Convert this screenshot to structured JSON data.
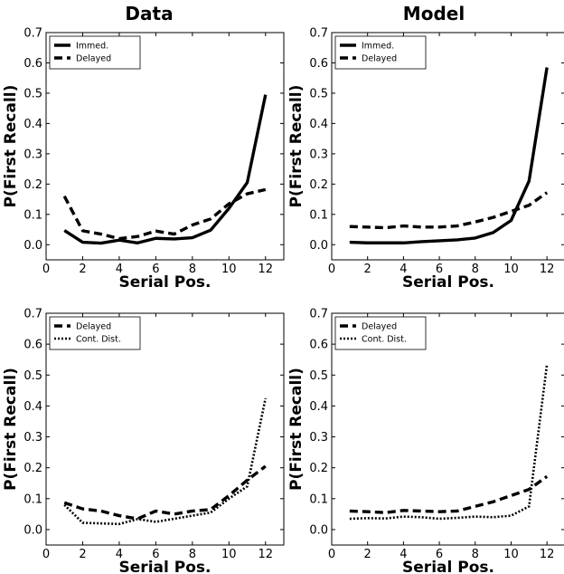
{
  "column_titles": [
    "Data",
    "Model"
  ],
  "chart_data": [
    {
      "type": "line",
      "panel": "top-left",
      "title": "Data",
      "xlabel": "Serial Pos.",
      "ylabel": "P(First Recall)",
      "xlim": [
        0,
        13
      ],
      "ylim": [
        -0.05,
        0.7
      ],
      "xticks": [
        0,
        2,
        4,
        6,
        8,
        10,
        12
      ],
      "yticks": [
        0.0,
        0.1,
        0.2,
        0.3,
        0.4,
        0.5,
        0.6,
        0.7
      ],
      "legend_position": "top-left",
      "x": [
        1,
        2,
        3,
        4,
        5,
        6,
        7,
        8,
        9,
        10,
        11,
        12
      ],
      "series": [
        {
          "name": "Immed.",
          "style": "solid",
          "values": [
            0.047,
            0.008,
            0.005,
            0.015,
            0.006,
            0.021,
            0.019,
            0.023,
            0.048,
            0.12,
            0.205,
            0.495
          ]
        },
        {
          "name": "Delayed",
          "style": "dashed",
          "values": [
            0.16,
            0.046,
            0.035,
            0.02,
            0.027,
            0.045,
            0.035,
            0.065,
            0.085,
            0.135,
            0.168,
            0.182
          ]
        }
      ]
    },
    {
      "type": "line",
      "panel": "top-right",
      "title": "Model",
      "xlabel": "Serial Pos.",
      "ylabel": "P(First Recall)",
      "xlim": [
        0,
        13
      ],
      "ylim": [
        -0.05,
        0.7
      ],
      "xticks": [
        0,
        2,
        4,
        6,
        8,
        10,
        12
      ],
      "yticks": [
        0.0,
        0.1,
        0.2,
        0.3,
        0.4,
        0.5,
        0.6,
        0.7
      ],
      "legend_position": "top-left",
      "x": [
        1,
        2,
        3,
        4,
        5,
        6,
        7,
        8,
        9,
        10,
        11,
        12
      ],
      "series": [
        {
          "name": "Immed.",
          "style": "solid",
          "values": [
            0.008,
            0.006,
            0.006,
            0.006,
            0.01,
            0.013,
            0.016,
            0.022,
            0.04,
            0.08,
            0.21,
            0.585
          ]
        },
        {
          "name": "Delayed",
          "style": "dashed",
          "values": [
            0.06,
            0.058,
            0.056,
            0.062,
            0.058,
            0.058,
            0.062,
            0.075,
            0.09,
            0.11,
            0.13,
            0.172
          ]
        }
      ]
    },
    {
      "type": "line",
      "panel": "bottom-left",
      "xlabel": "Serial Pos.",
      "ylabel": "P(First Recall)",
      "xlim": [
        0,
        13
      ],
      "ylim": [
        -0.05,
        0.7
      ],
      "xticks": [
        0,
        2,
        4,
        6,
        8,
        10,
        12
      ],
      "yticks": [
        0.0,
        0.1,
        0.2,
        0.3,
        0.4,
        0.5,
        0.6,
        0.7
      ],
      "legend_position": "top-left",
      "x": [
        1,
        2,
        3,
        4,
        5,
        6,
        7,
        8,
        9,
        10,
        11,
        12
      ],
      "series": [
        {
          "name": "Delayed",
          "style": "dashed",
          "values": [
            0.087,
            0.067,
            0.06,
            0.045,
            0.035,
            0.06,
            0.05,
            0.06,
            0.065,
            0.11,
            0.16,
            0.205
          ]
        },
        {
          "name": "Cont. Dist.",
          "style": "dotted",
          "values": [
            0.08,
            0.022,
            0.02,
            0.018,
            0.034,
            0.025,
            0.035,
            0.045,
            0.055,
            0.1,
            0.14,
            0.425
          ]
        }
      ]
    },
    {
      "type": "line",
      "panel": "bottom-right",
      "xlabel": "Serial Pos.",
      "ylabel": "P(First Recall)",
      "xlim": [
        0,
        13
      ],
      "ylim": [
        -0.05,
        0.7
      ],
      "xticks": [
        0,
        2,
        4,
        6,
        8,
        10,
        12
      ],
      "yticks": [
        0.0,
        0.1,
        0.2,
        0.3,
        0.4,
        0.5,
        0.6,
        0.7
      ],
      "legend_position": "top-left",
      "x": [
        1,
        2,
        3,
        4,
        5,
        6,
        7,
        8,
        9,
        10,
        11,
        12
      ],
      "series": [
        {
          "name": "Delayed",
          "style": "dashed",
          "values": [
            0.06,
            0.058,
            0.055,
            0.062,
            0.06,
            0.058,
            0.06,
            0.075,
            0.09,
            0.11,
            0.13,
            0.172
          ]
        },
        {
          "name": "Cont. Dist.",
          "style": "dotted",
          "values": [
            0.035,
            0.037,
            0.036,
            0.042,
            0.04,
            0.035,
            0.038,
            0.042,
            0.04,
            0.045,
            0.075,
            0.535
          ]
        }
      ]
    }
  ]
}
